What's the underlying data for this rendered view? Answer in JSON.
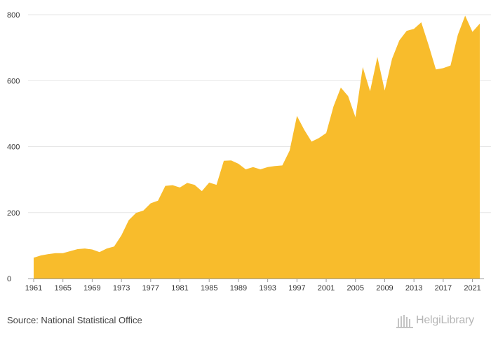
{
  "chart_data": {
    "type": "area",
    "title": "",
    "xlabel": "",
    "ylabel": "",
    "ylim": [
      0,
      800
    ],
    "xlim": [
      1961,
      2022
    ],
    "grid": true,
    "legend": "none",
    "yticks": [
      0,
      200,
      400,
      600,
      800
    ],
    "xticks": [
      1961,
      1965,
      1969,
      1973,
      1977,
      1981,
      1985,
      1989,
      1993,
      1997,
      2001,
      2005,
      2009,
      2013,
      2017,
      2021
    ],
    "x": [
      1961,
      1962,
      1963,
      1964,
      1965,
      1966,
      1967,
      1968,
      1969,
      1970,
      1971,
      1972,
      1973,
      1974,
      1975,
      1976,
      1977,
      1978,
      1979,
      1980,
      1981,
      1982,
      1983,
      1984,
      1985,
      1986,
      1987,
      1988,
      1989,
      1990,
      1991,
      1992,
      1993,
      1994,
      1995,
      1996,
      1997,
      1998,
      1999,
      2000,
      2001,
      2002,
      2003,
      2004,
      2005,
      2006,
      2007,
      2008,
      2009,
      2010,
      2011,
      2012,
      2013,
      2014,
      2015,
      2016,
      2017,
      2018,
      2019,
      2020,
      2021,
      2022
    ],
    "series": [
      {
        "values": [
          63,
          70,
          74,
          77,
          77,
          83,
          89,
          91,
          88,
          80,
          91,
          97,
          131,
          177,
          199,
          206,
          228,
          236,
          281,
          283,
          276,
          290,
          284,
          265,
          291,
          284,
          357,
          358,
          348,
          331,
          338,
          331,
          338,
          341,
          343,
          388,
          493,
          451,
          415,
          426,
          441,
          522,
          579,
          553,
          489,
          641,
          568,
          672,
          570,
          666,
          722,
          751,
          757,
          777,
          708,
          634,
          638,
          646,
          739,
          797,
          748,
          773
        ]
      }
    ],
    "color": "#f8bc2c"
  },
  "footer": {
    "source": "Source: National Statistical Office",
    "logo_text": "HelgiLibrary"
  }
}
